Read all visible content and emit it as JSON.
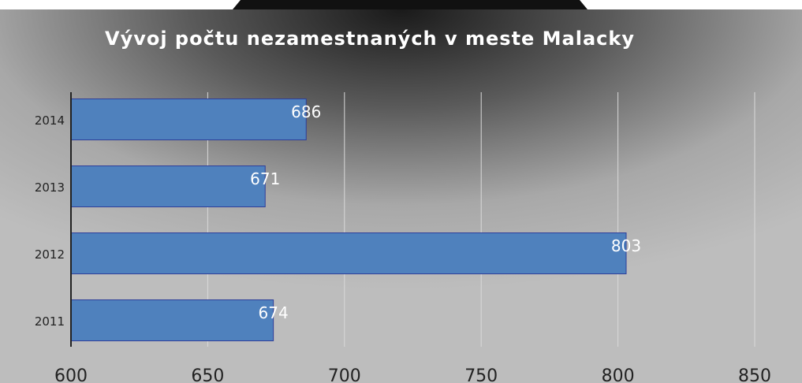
{
  "chart_data": {
    "type": "bar",
    "orientation": "horizontal",
    "title": "Vývoj počtu nezamestnaných v meste Malacky",
    "categories": [
      "2011",
      "2012",
      "2013",
      "2014"
    ],
    "values": [
      674,
      803,
      671,
      686
    ],
    "color": "#4f81bd",
    "xlim": [
      600,
      850
    ],
    "xticks": [
      600,
      650,
      700,
      750,
      800,
      850
    ],
    "grid": true
  }
}
